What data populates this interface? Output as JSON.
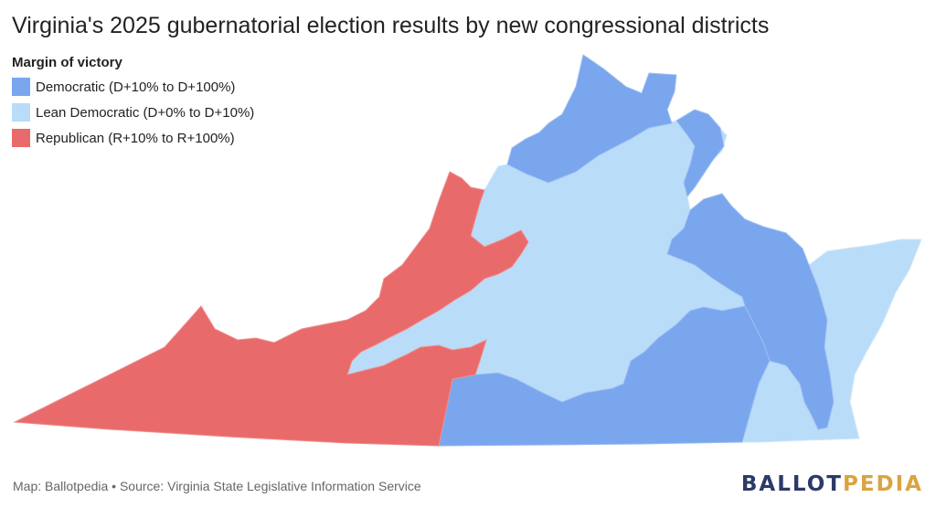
{
  "title": "Virginia's 2025 gubernatorial election results by new congressional districts",
  "legend": {
    "title": "Margin of victory",
    "items": [
      {
        "label": "Democratic (D+10% to D+100%)",
        "color": "#7aa6ee"
      },
      {
        "label": "Lean Democratic (D+0% to D+10%)",
        "color": "#b9dcf8"
      },
      {
        "label": "Republican (R+10% to R+100%)",
        "color": "#e96a6a"
      }
    ]
  },
  "footer": {
    "source": "Map: Ballotpedia • Source: Virginia State Legislative Information Service"
  },
  "logo": {
    "part1": "BALLOT",
    "part2": "PEDIA"
  }
}
